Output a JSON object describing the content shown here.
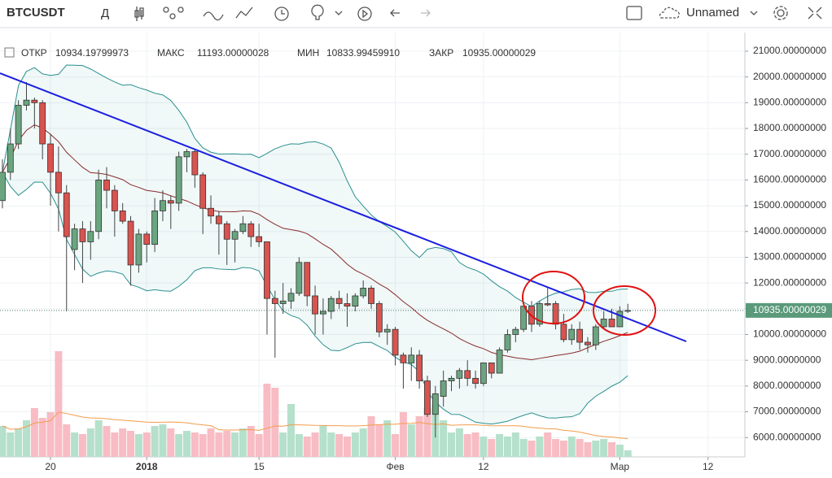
{
  "toolbar": {
    "symbol": "BTCUSDT",
    "interval": "Д",
    "layout_name": "Unnamed"
  },
  "legend": {
    "open_label": "ОТКР",
    "open": "10934.19799973",
    "high_label": "МАКС",
    "high": "11193.00000028",
    "low_label": "МИН",
    "low": "10833.99459910",
    "close_label": "ЗАКР",
    "close": "10935.00000029"
  },
  "chart_data": {
    "type": "candlestick",
    "x": [
      -6,
      -5,
      -4,
      -3,
      -2,
      -1,
      0,
      1,
      2,
      3,
      4,
      5,
      6,
      7,
      8,
      9,
      10,
      11,
      12,
      13,
      14,
      15,
      16,
      17,
      18,
      19,
      20,
      21,
      22,
      23,
      24,
      25,
      26,
      27,
      28,
      29,
      30,
      31,
      32,
      33,
      34,
      35,
      36,
      37,
      38,
      39,
      40,
      41,
      42,
      43,
      44,
      45,
      46,
      47,
      48,
      49,
      50,
      51,
      52,
      53,
      54,
      55,
      56,
      57,
      58,
      59,
      60,
      61,
      62,
      63,
      64,
      65,
      66,
      67,
      68,
      69,
      70,
      71,
      72
    ],
    "open": [
      15200,
      16300,
      17400,
      18900,
      19100,
      19000,
      17400,
      16300,
      15500,
      13300,
      14100,
      13600,
      14000,
      16000,
      15600,
      14800,
      14400,
      12700,
      13900,
      13500,
      14800,
      15200,
      15100,
      16900,
      17100,
      16200,
      14900,
      14600,
      14300,
      13700,
      14000,
      14300,
      13800,
      13600,
      11400,
      11200,
      11300,
      11600,
      12800,
      11500,
      10800,
      10900,
      11400,
      11200,
      11100,
      11500,
      11800,
      11200,
      10100,
      10200,
      9200,
      8900,
      9200,
      8200,
      6900,
      7600,
      8200,
      8300,
      8600,
      8300,
      8100,
      8900,
      8500,
      9400,
      10000,
      10200,
      11100,
      10400,
      11200,
      11200,
      10400,
      9800,
      10200,
      9700,
      9600,
      10300,
      10600,
      10300,
      10934.19799973
    ],
    "high": [
      16800,
      18000,
      19100,
      19800,
      19200,
      19100,
      17800,
      17300,
      15800,
      14300,
      14400,
      14400,
      16400,
      16500,
      15800,
      15100,
      14600,
      14100,
      14000,
      15300,
      15600,
      15400,
      17100,
      17200,
      17200,
      16300,
      15400,
      14800,
      14400,
      14100,
      14600,
      14400,
      14300,
      13600,
      11700,
      12000,
      11800,
      13000,
      12800,
      11900,
      11400,
      11500,
      11700,
      11600,
      11600,
      12100,
      11900,
      11300,
      10400,
      10300,
      9300,
      9500,
      9400,
      8400,
      8000,
      8600,
      8400,
      8700,
      9000,
      8600,
      8900,
      8900,
      9500,
      10200,
      10300,
      11100,
      11300,
      11300,
      11800,
      11300,
      10800,
      10400,
      10500,
      9900,
      10400,
      10900,
      11000,
      11100,
      11193.00000028
    ],
    "low": [
      14900,
      16000,
      17200,
      18700,
      18000,
      16800,
      15000,
      14000,
      10900,
      12500,
      12000,
      12900,
      13700,
      14900,
      13800,
      14300,
      11900,
      12400,
      12800,
      13200,
      14400,
      14100,
      14800,
      16300,
      15700,
      13900,
      14300,
      13100,
      12700,
      12800,
      13900,
      13400,
      13400,
      10000,
      9100,
      10800,
      11000,
      11500,
      11100,
      10000,
      10000,
      10600,
      11000,
      10300,
      10900,
      11400,
      11000,
      9900,
      9600,
      8800,
      7900,
      8200,
      7900,
      6800,
      6000,
      7200,
      7800,
      7900,
      8000,
      7900,
      8000,
      8300,
      8500,
      9300,
      9700,
      10100,
      10100,
      10300,
      11100,
      10200,
      9700,
      9600,
      9400,
      9300,
      9400,
      10200,
      10300,
      10300,
      10833.9945991
    ],
    "close": [
      16300,
      17400,
      18900,
      19100,
      19000,
      17400,
      16300,
      15500,
      13800,
      14100,
      13600,
      14000,
      16000,
      15600,
      14800,
      14400,
      12700,
      13900,
      13500,
      14800,
      15200,
      15100,
      16900,
      17100,
      16200,
      14900,
      14600,
      14300,
      13700,
      14000,
      14300,
      13800,
      13600,
      11400,
      11200,
      11300,
      11600,
      12800,
      11500,
      10800,
      10900,
      11400,
      11200,
      11100,
      11500,
      11800,
      11200,
      10100,
      10200,
      9200,
      8900,
      9200,
      8200,
      6900,
      7700,
      8200,
      8300,
      8600,
      8300,
      8100,
      8900,
      8500,
      9400,
      10000,
      10200,
      11100,
      10400,
      11200,
      11150,
      10400,
      9800,
      10200,
      9700,
      9600,
      10300,
      10600,
      10300,
      10900,
      10935.00000029
    ],
    "volume": [
      38,
      30,
      35,
      45,
      60,
      48,
      55,
      130,
      40,
      30,
      28,
      35,
      45,
      38,
      30,
      35,
      32,
      28,
      30,
      38,
      40,
      35,
      28,
      32,
      30,
      28,
      35,
      30,
      32,
      30,
      35,
      38,
      28,
      90,
      85,
      30,
      65,
      28,
      25,
      30,
      38,
      30,
      28,
      25,
      30,
      35,
      50,
      40,
      45,
      28,
      55,
      40,
      50,
      60,
      65,
      45,
      30,
      35,
      28,
      30,
      25,
      22,
      28,
      25,
      30,
      22,
      20,
      25,
      30,
      22,
      20,
      25,
      22,
      18,
      20,
      22,
      18,
      15,
      8
    ],
    "vlim": [
      0,
      140
    ],
    "xlim": [
      -6.3,
      86.6
    ],
    "xticks": [
      {
        "value": 0,
        "label": "20"
      },
      {
        "value": 12,
        "label": "2018"
      },
      {
        "value": 26,
        "label": "15"
      },
      {
        "value": 43,
        "label": "Фев"
      },
      {
        "value": 54,
        "label": "12"
      },
      {
        "value": 71,
        "label": "Мар"
      },
      {
        "value": 82,
        "label": "12"
      }
    ],
    "ylim": [
      5250,
      21725
    ],
    "yticks": [
      {
        "value": 6000,
        "label": "6000.00000000"
      },
      {
        "value": 7000,
        "label": "7000.00000000"
      },
      {
        "value": 8000,
        "label": "8000.00000000"
      },
      {
        "value": 9000,
        "label": "9000.00000000"
      },
      {
        "value": 10000,
        "label": "10000.00000000"
      },
      {
        "value": 11000,
        "label": "11000.00000000"
      },
      {
        "value": 12000,
        "label": "12000.00000000"
      },
      {
        "value": 13000,
        "label": "13000.00000000"
      },
      {
        "value": 14000,
        "label": "14000.00000000"
      },
      {
        "value": 15000,
        "label": "15000.00000000"
      },
      {
        "value": 16000,
        "label": "16000.00000000"
      },
      {
        "value": 17000,
        "label": "17000.00000000"
      },
      {
        "value": 18000,
        "label": "18000.00000000"
      },
      {
        "value": 19000,
        "label": "19000.00000000"
      },
      {
        "value": 20000,
        "label": "20000.00000000"
      },
      {
        "value": 21000,
        "label": "21000.00000000"
      }
    ],
    "last_price": {
      "value": 10935.00000029,
      "label": "10935.00000029"
    },
    "grid": true,
    "up_color": "#6aa57f",
    "down_color": "#d9534f"
  }
}
